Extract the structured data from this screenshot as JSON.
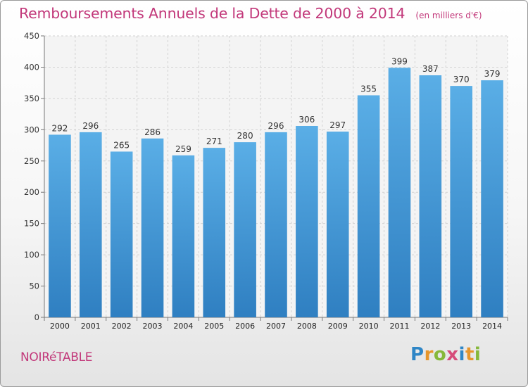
{
  "chart_data": {
    "type": "bar",
    "title": "Remboursements Annuels de la Dette de 2000 à 2014",
    "unit_note": "(en milliers d'€)",
    "categories": [
      "2000",
      "2001",
      "2002",
      "2003",
      "2004",
      "2005",
      "2006",
      "2007",
      "2008",
      "2009",
      "2010",
      "2011",
      "2012",
      "2013",
      "2014"
    ],
    "values": [
      292,
      296,
      265,
      286,
      259,
      271,
      280,
      296,
      306,
      297,
      355,
      399,
      387,
      370,
      379
    ],
    "ylim": [
      0,
      450
    ],
    "yticks": [
      0,
      50,
      100,
      150,
      200,
      250,
      300,
      350,
      400,
      450
    ],
    "xlabel": "",
    "ylabel": "",
    "grid": true,
    "bar_color": "#4aa0dc"
  },
  "footer": {
    "town": "NOIRéTABLE",
    "logo": "Proxiti"
  }
}
